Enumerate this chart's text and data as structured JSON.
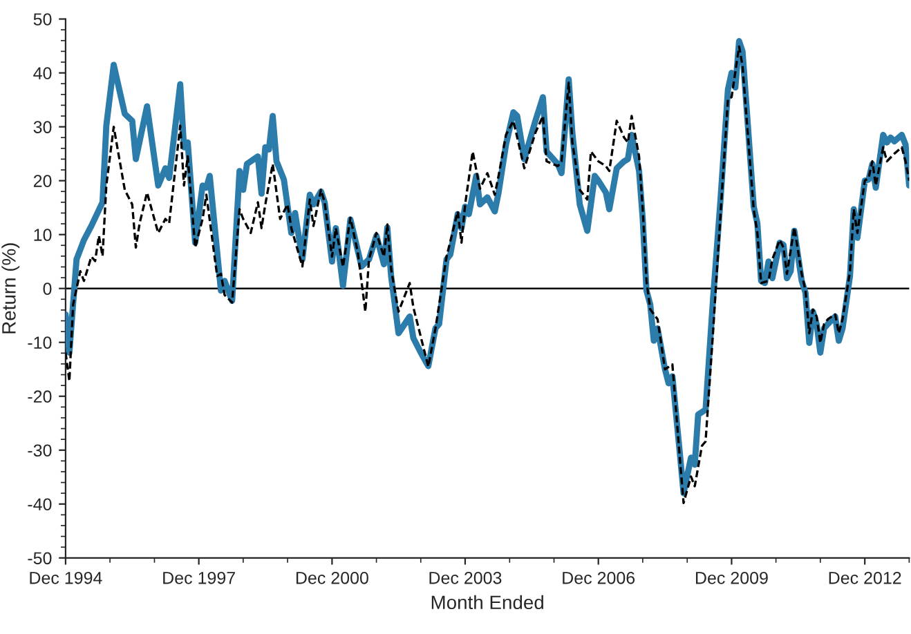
{
  "chart_data": {
    "type": "line",
    "xlabel": "Month Ended",
    "ylabel": "Return (%)",
    "xlim": [
      "1994-12",
      "2013-12"
    ],
    "xticks": [
      {
        "value": "1994-12",
        "label": "Dec 1994"
      },
      {
        "value": "1997-12",
        "label": "Dec 1997"
      },
      {
        "value": "2000-12",
        "label": "Dec 2000"
      },
      {
        "value": "2003-12",
        "label": "Dec 2003"
      },
      {
        "value": "2006-12",
        "label": "Dec 2006"
      },
      {
        "value": "2009-12",
        "label": "Dec 2009"
      },
      {
        "value": "2012-12",
        "label": "Dec 2012"
      }
    ],
    "ylim": [
      -50,
      50
    ],
    "yticks": [
      -50,
      -40,
      -30,
      -20,
      -10,
      0,
      10,
      20,
      30,
      40,
      50
    ],
    "grid": false,
    "legend": false,
    "marker": "none",
    "ref_lines": [
      {
        "axis": "y",
        "value": 0,
        "color": "#000000"
      }
    ],
    "series": [
      {
        "color": "#2b7bab",
        "line_style": "solid",
        "x": [
          "1994-12",
          "1995-01",
          "1995-03",
          "1995-05",
          "1995-07",
          "1995-10",
          "1995-11",
          "1996-01",
          "1996-03",
          "1996-04",
          "1996-06",
          "1996-07",
          "1996-10",
          "1997-01",
          "1997-03",
          "1997-04",
          "1997-07",
          "1997-08",
          "1997-09",
          "1997-11",
          "1998-01",
          "1998-02",
          "1998-03",
          "1998-06",
          "1998-07",
          "1998-09",
          "1998-11",
          "1998-12",
          "1999-01",
          "1999-04",
          "1999-05",
          "1999-06",
          "1999-07",
          "1999-08",
          "1999-09",
          "1999-11",
          "2000-01",
          "2000-02",
          "2000-04",
          "2000-06",
          "2000-07",
          "2000-09",
          "2000-10",
          "2000-12",
          "2001-01",
          "2001-03",
          "2001-05",
          "2001-08",
          "2001-10",
          "2001-12",
          "2002-02",
          "2002-03",
          "2002-04",
          "2002-06",
          "2002-09",
          "2002-10",
          "2002-12",
          "2003-02",
          "2003-04",
          "2003-05",
          "2003-07",
          "2003-08",
          "2003-10",
          "2003-11",
          "2003-12",
          "2004-01",
          "2004-03",
          "2004-04",
          "2004-06",
          "2004-08",
          "2004-09",
          "2004-11",
          "2005-01",
          "2005-02",
          "2005-04",
          "2005-07",
          "2005-09",
          "2005-10",
          "2006-01",
          "2006-02",
          "2006-04",
          "2006-05",
          "2006-07",
          "2006-09",
          "2006-11",
          "2006-12",
          "2007-02",
          "2007-03",
          "2007-05",
          "2007-07",
          "2007-08",
          "2007-09",
          "2007-11",
          "2007-12",
          "2008-01",
          "2008-02",
          "2008-03",
          "2008-04",
          "2008-06",
          "2008-07",
          "2008-08",
          "2008-10",
          "2008-11",
          "2009-01",
          "2009-02",
          "2009-03",
          "2009-05",
          "2009-07",
          "2009-09",
          "2009-11",
          "2009-12",
          "2010-01",
          "2010-02",
          "2010-03",
          "2010-06",
          "2010-07",
          "2010-08",
          "2010-09",
          "2010-10",
          "2010-11",
          "2011-01",
          "2011-02",
          "2011-03",
          "2011-04",
          "2011-05",
          "2011-07",
          "2011-08",
          "2011-09",
          "2011-10",
          "2011-11",
          "2011-12",
          "2012-01",
          "2012-02",
          "2012-04",
          "2012-05",
          "2012-06",
          "2012-08",
          "2012-09",
          "2012-10",
          "2012-12",
          "2013-01",
          "2013-02",
          "2013-03",
          "2013-05",
          "2013-06",
          "2013-07",
          "2013-08",
          "2013-10",
          "2013-11",
          "2013-12"
        ],
        "values": [
          -4.8,
          -11.9,
          5.4,
          9,
          11.6,
          16,
          30.2,
          41.5,
          35.5,
          32.4,
          31.1,
          24,
          33.8,
          19.1,
          22.3,
          20.5,
          37.9,
          26.2,
          27.1,
          8.5,
          19.1,
          18.7,
          20.9,
          -0.4,
          1.4,
          -2.3,
          21.8,
          18.3,
          23.1,
          24.5,
          17.6,
          26.2,
          25.8,
          32,
          23.6,
          20.2,
          10.3,
          14,
          5.4,
          17.4,
          15.6,
          18,
          16,
          5,
          11.2,
          0.5,
          12.8,
          4.1,
          5.4,
          9.8,
          4.5,
          11.3,
          2.3,
          -8.3,
          -5.2,
          -9.2,
          -11.9,
          -14.4,
          -7.4,
          -6.6,
          5.4,
          6.3,
          13.8,
          11.2,
          15.2,
          13.8,
          20.9,
          15.6,
          16.9,
          14.3,
          17.8,
          26.7,
          32.7,
          32,
          24,
          31.1,
          35.5,
          25.4,
          23.1,
          21.4,
          38.8,
          28.9,
          15.6,
          10.7,
          20.9,
          20,
          17.8,
          14.7,
          22.3,
          23.6,
          24,
          28.5,
          21.8,
          12.9,
          -0.4,
          -3,
          -9.7,
          -7.4,
          -15,
          -17.6,
          -16.3,
          -30.5,
          -38,
          -31.4,
          -32.7,
          -23.4,
          -22.5,
          -2.1,
          16.5,
          36.9,
          40,
          37.3,
          45.9,
          44,
          15.2,
          12.1,
          1.4,
          1,
          5,
          1.9,
          8.5,
          8.1,
          1.9,
          3.2,
          10.7,
          1.4,
          -0.8,
          -10.1,
          -4.3,
          -6.6,
          -11.9,
          -7.4,
          -6.6,
          -5.2,
          -9.7,
          -7.4,
          2.3,
          14.7,
          9.4,
          20,
          20.2,
          23.1,
          18.7,
          28.5,
          27.1,
          28,
          27.3,
          28.5,
          26.7,
          19.1
        ]
      },
      {
        "color": "#000000",
        "line_style": "dashed",
        "x": [
          "1994-12",
          "1995-01",
          "1995-02",
          "1995-04",
          "1995-05",
          "1995-07",
          "1995-08",
          "1995-09",
          "1995-10",
          "1995-11",
          "1996-01",
          "1996-04",
          "1996-06",
          "1996-07",
          "1996-08",
          "1996-10",
          "1997-01",
          "1997-03",
          "1997-04",
          "1997-07",
          "1997-08",
          "1997-09",
          "1997-11",
          "1998-01",
          "1998-02",
          "1998-05",
          "1998-06",
          "1998-07",
          "1998-09",
          "1998-11",
          "1998-12",
          "1999-02",
          "1999-04",
          "1999-05",
          "1999-06",
          "1999-08",
          "1999-10",
          "1999-12",
          "2000-01",
          "2000-04",
          "2000-06",
          "2000-07",
          "2000-09",
          "2000-10",
          "2000-12",
          "2001-01",
          "2001-03",
          "2001-05",
          "2001-07",
          "2001-09",
          "2001-10",
          "2001-12",
          "2002-02",
          "2002-03",
          "2002-04",
          "2002-06",
          "2002-09",
          "2002-10",
          "2003-02",
          "2003-04",
          "2003-07",
          "2003-10",
          "2003-11",
          "2003-12",
          "2004-02",
          "2004-04",
          "2004-06",
          "2004-08",
          "2004-09",
          "2004-11",
          "2005-01",
          "2005-04",
          "2005-07",
          "2005-09",
          "2005-10",
          "2006-01",
          "2006-02",
          "2006-04",
          "2006-05",
          "2006-07",
          "2006-09",
          "2006-10",
          "2006-12",
          "2007-02",
          "2007-03",
          "2007-05",
          "2007-07",
          "2007-08",
          "2007-09",
          "2007-11",
          "2007-12",
          "2008-01",
          "2008-02",
          "2008-04",
          "2008-06",
          "2008-08",
          "2008-10",
          "2008-11",
          "2009-01",
          "2009-02",
          "2009-04",
          "2009-05",
          "2009-07",
          "2009-09",
          "2009-11",
          "2009-12",
          "2010-02",
          "2010-03",
          "2010-06",
          "2010-07",
          "2010-08",
          "2010-10",
          "2010-11",
          "2011-01",
          "2011-02",
          "2011-03",
          "2011-05",
          "2011-07",
          "2011-08",
          "2011-09",
          "2011-10",
          "2011-11",
          "2011-12",
          "2012-01",
          "2012-02",
          "2012-04",
          "2012-05",
          "2012-06",
          "2012-08",
          "2012-09",
          "2012-10",
          "2012-12",
          "2013-01",
          "2013-02",
          "2013-03",
          "2013-05",
          "2013-06",
          "2013-08",
          "2013-10",
          "2013-11",
          "2013-12"
        ],
        "values": [
          -11.9,
          -17.2,
          -3,
          3.2,
          1.4,
          5.9,
          5.1,
          9.8,
          6,
          19.1,
          30,
          18.3,
          15.6,
          7.6,
          12.1,
          17.8,
          10.3,
          12.9,
          12.1,
          30.2,
          19.1,
          24.5,
          7.6,
          12.9,
          17.4,
          2.3,
          2.7,
          -1.2,
          -2.6,
          14.7,
          12.9,
          10.3,
          16,
          11.2,
          15.6,
          23.1,
          12.9,
          15.6,
          11.2,
          4.1,
          16.5,
          11.6,
          18.3,
          16,
          5.9,
          11.2,
          4,
          13.1,
          6.7,
          -4.3,
          5.4,
          10.3,
          5.9,
          11.9,
          3.6,
          -4.3,
          1,
          -3.5,
          -14.5,
          -7.4,
          5.9,
          14.3,
          8.5,
          15.6,
          25.4,
          18.5,
          21.4,
          17.4,
          20.9,
          28.5,
          31.1,
          22.3,
          28.9,
          32,
          23.6,
          22.7,
          23.6,
          38.2,
          27.1,
          18.3,
          16.5,
          25.4,
          23.6,
          22.7,
          21.8,
          31.1,
          28,
          27.1,
          32,
          24.5,
          14.7,
          1.4,
          -3.9,
          -5.7,
          -15,
          -14.1,
          -31.4,
          -39.8,
          -34.9,
          -36.7,
          -29.2,
          -28.4,
          -8.3,
          13.8,
          35.1,
          35.5,
          44.9,
          41.3,
          14.7,
          10.3,
          1,
          1.4,
          5.4,
          9,
          7.6,
          2.7,
          11.3,
          2.7,
          -0.4,
          -8.3,
          -3.9,
          -5.2,
          -10.1,
          -6.6,
          -5.7,
          -4.8,
          -8.3,
          -5.7,
          3.2,
          14.7,
          10.3,
          20,
          20.5,
          23.6,
          19.1,
          26.2,
          23.6,
          25,
          26.2,
          23.6,
          20
        ]
      }
    ]
  }
}
